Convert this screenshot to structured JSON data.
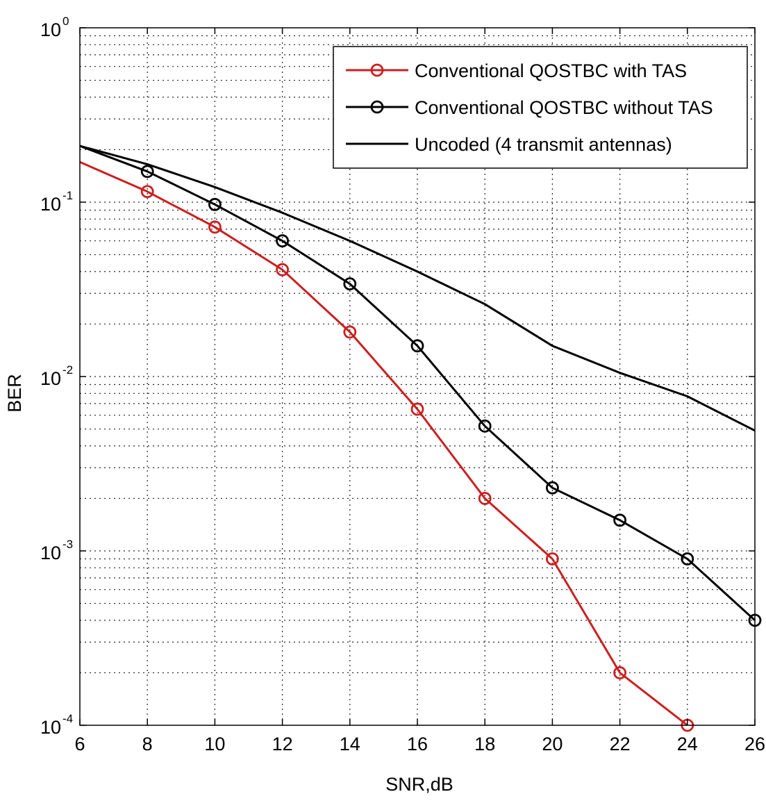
{
  "chart_data": {
    "type": "line",
    "title": "",
    "xlabel": "SNR,dB",
    "ylabel": "BER",
    "xlim": [
      6,
      26
    ],
    "ylim": [
      0.0001,
      1
    ],
    "yscale": "log",
    "grid": true,
    "legend_position": "top-right",
    "x_ticks": [
      6,
      8,
      10,
      12,
      14,
      16,
      18,
      20,
      22,
      24,
      26
    ],
    "y_ticks": [
      {
        "value": 0.0001,
        "base": "10",
        "exp": "-4"
      },
      {
        "value": 0.001,
        "base": "10",
        "exp": "-3"
      },
      {
        "value": 0.01,
        "base": "10",
        "exp": "-2"
      },
      {
        "value": 0.1,
        "base": "10",
        "exp": "-1"
      },
      {
        "value": 1,
        "base": "10",
        "exp": "0"
      }
    ],
    "series": [
      {
        "name": "Conventional QOSTBC with TAS",
        "color": "#cc1f1f",
        "marker": "circle",
        "x": [
          6,
          8,
          10,
          12,
          14,
          16,
          18,
          20,
          22,
          24
        ],
        "y": [
          0.17,
          0.115,
          0.072,
          0.041,
          0.018,
          0.0065,
          0.002,
          0.0009,
          0.0002,
          0.0001
        ]
      },
      {
        "name": "Conventional QOSTBC without TAS",
        "color": "#000000",
        "marker": "circle",
        "x": [
          6,
          8,
          10,
          12,
          14,
          16,
          18,
          20,
          22,
          24,
          26
        ],
        "y": [
          0.21,
          0.15,
          0.097,
          0.06,
          0.034,
          0.015,
          0.0052,
          0.0023,
          0.0015,
          0.0009,
          0.0004
        ]
      },
      {
        "name": "Uncoded (4 transmit antennas)",
        "color": "#000000",
        "marker": "none",
        "x": [
          6,
          8,
          10,
          12,
          14,
          16,
          18,
          20,
          22,
          24,
          26
        ],
        "y": [
          0.21,
          0.165,
          0.122,
          0.087,
          0.06,
          0.04,
          0.026,
          0.015,
          0.0105,
          0.0077,
          0.0049
        ]
      }
    ]
  }
}
